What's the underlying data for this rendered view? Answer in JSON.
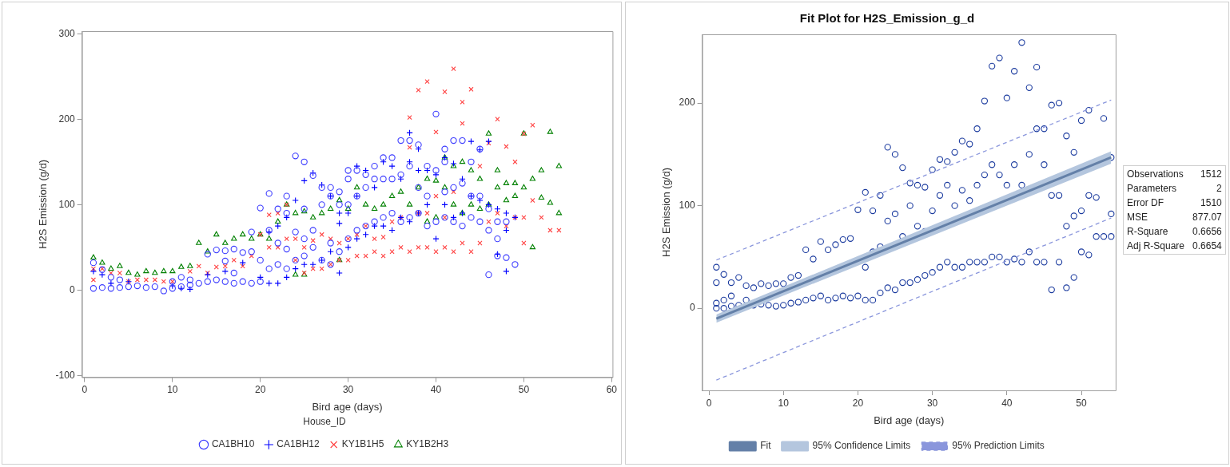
{
  "chart_data": [
    {
      "type": "scatter",
      "xlabel": "Bird age (days)",
      "ylabel": "H2S Emission (g/d)",
      "legend_title": "House_ID",
      "legend": "bottom",
      "grid": false,
      "xlim": [
        -0.3,
        60.1
      ],
      "xticks": [
        0,
        10,
        20,
        30,
        40,
        50,
        60
      ],
      "ylim": [
        -102,
        303
      ],
      "yticks": [
        -100,
        0,
        100,
        200,
        300
      ],
      "series": [
        {
          "name": "CA1BH10",
          "color": "#3b3bff",
          "marker": "circle",
          "x": [
            1,
            1,
            2,
            2,
            3,
            3,
            4,
            4,
            5,
            6,
            7,
            8,
            9,
            10,
            10,
            11,
            11,
            12,
            12,
            13,
            14,
            14,
            15,
            15,
            16,
            16,
            16,
            17,
            17,
            17,
            18,
            18,
            19,
            19,
            19,
            20,
            20,
            20,
            21,
            21,
            21,
            22,
            22,
            22,
            23,
            23,
            23,
            23,
            24,
            24,
            24,
            25,
            25,
            25,
            25,
            26,
            26,
            26,
            27,
            27,
            27,
            28,
            28,
            28,
            28,
            29,
            29,
            29,
            30,
            30,
            30,
            30,
            31,
            31,
            31,
            32,
            32,
            32,
            33,
            33,
            33,
            34,
            34,
            34,
            35,
            35,
            35,
            36,
            36,
            36,
            37,
            37,
            37,
            38,
            38,
            38,
            39,
            39,
            39,
            40,
            40,
            40,
            41,
            41,
            41,
            41,
            42,
            42,
            42,
            43,
            43,
            43,
            44,
            44,
            44,
            45,
            45,
            45,
            46,
            46,
            46,
            47,
            47,
            47,
            48,
            48,
            49
          ],
          "values": [
            2,
            32,
            3,
            24,
            2,
            15,
            3,
            12,
            4,
            5,
            3,
            4,
            -1,
            2,
            10,
            4,
            15,
            6,
            12,
            8,
            10,
            42,
            12,
            47,
            10,
            34,
            46,
            8,
            20,
            48,
            10,
            44,
            8,
            45,
            68,
            10,
            35,
            96,
            25,
            70,
            113,
            30,
            55,
            95,
            25,
            48,
            90,
            110,
            35,
            68,
            157,
            40,
            60,
            95,
            150,
            50,
            70,
            134,
            35,
            100,
            120,
            30,
            55,
            110,
            120,
            45,
            100,
            115,
            60,
            100,
            130,
            140,
            70,
            110,
            140,
            75,
            120,
            135,
            80,
            130,
            145,
            85,
            130,
            155,
            90,
            130,
            155,
            80,
            135,
            175,
            85,
            145,
            175,
            90,
            120,
            170,
            75,
            110,
            145,
            80,
            140,
            206,
            85,
            115,
            150,
            165,
            80,
            120,
            175,
            75,
            125,
            175,
            85,
            110,
            150,
            80,
            110,
            165,
            18,
            70,
            95,
            40,
            60,
            80,
            38,
            80,
            30
          ]
        },
        {
          "name": "CA1BH12",
          "color": "#0000ff",
          "marker": "cross",
          "x": [
            1,
            2,
            3,
            5,
            10,
            11,
            12,
            14,
            16,
            18,
            20,
            21,
            21,
            22,
            22,
            23,
            23,
            24,
            24,
            25,
            25,
            26,
            26,
            27,
            27,
            28,
            28,
            29,
            29,
            29,
            30,
            30,
            31,
            31,
            31,
            32,
            32,
            33,
            33,
            34,
            34,
            35,
            35,
            36,
            36,
            37,
            37,
            37,
            38,
            38,
            38,
            39,
            39,
            40,
            40,
            41,
            41,
            42,
            42,
            43,
            43,
            44,
            44,
            45,
            45,
            46,
            46,
            47,
            47,
            48,
            48,
            48,
            49
          ],
          "values": [
            22,
            18,
            8,
            10,
            5,
            2,
            1,
            18,
            22,
            32,
            15,
            8,
            68,
            8,
            75,
            15,
            85,
            25,
            105,
            30,
            128,
            30,
            137,
            35,
            123,
            45,
            110,
            20,
            78,
            90,
            50,
            90,
            60,
            110,
            145,
            65,
            140,
            75,
            120,
            75,
            150,
            70,
            145,
            85,
            130,
            80,
            150,
            184,
            90,
            140,
            165,
            100,
            140,
            60,
            135,
            100,
            155,
            85,
            148,
            90,
            130,
            110,
            174,
            105,
            164,
            100,
            174,
            42,
            95,
            22,
            70,
            90,
            85
          ]
        },
        {
          "name": "KY1B1H5",
          "color": "#ff4040",
          "marker": "x",
          "x": [
            1,
            1,
            2,
            3,
            4,
            5,
            6,
            7,
            8,
            9,
            10,
            12,
            13,
            14,
            15,
            16,
            17,
            18,
            19,
            20,
            21,
            21,
            22,
            22,
            23,
            23,
            24,
            24,
            25,
            25,
            26,
            26,
            27,
            27,
            28,
            28,
            29,
            29,
            30,
            30,
            31,
            31,
            32,
            32,
            33,
            33,
            34,
            34,
            35,
            35,
            36,
            36,
            37,
            37,
            37,
            38,
            38,
            38,
            39,
            39,
            39,
            40,
            40,
            40,
            41,
            41,
            41,
            42,
            42,
            42,
            43,
            43,
            43,
            44,
            44,
            45,
            45,
            46,
            46,
            47,
            47,
            48,
            48,
            49,
            49,
            50,
            50,
            50,
            51,
            51,
            52,
            53,
            54
          ],
          "values": [
            12,
            25,
            25,
            20,
            20,
            10,
            12,
            12,
            12,
            10,
            10,
            22,
            28,
            20,
            27,
            28,
            35,
            28,
            40,
            65,
            50,
            88,
            50,
            90,
            60,
            100,
            35,
            60,
            20,
            50,
            25,
            58,
            25,
            65,
            30,
            60,
            35,
            55,
            35,
            60,
            40,
            65,
            40,
            75,
            45,
            60,
            40,
            62,
            45,
            80,
            50,
            85,
            45,
            167,
            202,
            50,
            90,
            234,
            50,
            90,
            244,
            45,
            110,
            185,
            50,
            85,
            232,
            45,
            115,
            259,
            55,
            195,
            220,
            45,
            235,
            55,
            145,
            80,
            172,
            90,
            200,
            75,
            168,
            85,
            150,
            55,
            85,
            183,
            105,
            193,
            85,
            70,
            70
          ]
        },
        {
          "name": "KY1B2H3",
          "color": "#008000",
          "marker": "triangle",
          "x": [
            1,
            2,
            3,
            4,
            5,
            6,
            7,
            8,
            9,
            10,
            11,
            12,
            13,
            14,
            15,
            16,
            17,
            18,
            19,
            20,
            21,
            22,
            23,
            24,
            24,
            25,
            25,
            26,
            27,
            28,
            29,
            29,
            30,
            31,
            32,
            33,
            34,
            35,
            36,
            37,
            38,
            39,
            39,
            40,
            40,
            41,
            41,
            42,
            42,
            43,
            43,
            44,
            44,
            45,
            45,
            46,
            46,
            47,
            47,
            48,
            48,
            49,
            49,
            50,
            50,
            51,
            51,
            52,
            52,
            53,
            53,
            54,
            54
          ],
          "values": [
            38,
            32,
            25,
            28,
            20,
            18,
            22,
            20,
            22,
            22,
            27,
            28,
            55,
            45,
            65,
            55,
            60,
            65,
            60,
            65,
            60,
            80,
            100,
            18,
            90,
            18,
            92,
            85,
            90,
            95,
            35,
            105,
            95,
            120,
            100,
            95,
            100,
            110,
            115,
            100,
            120,
            80,
            130,
            85,
            128,
            120,
            155,
            100,
            145,
            90,
            150,
            100,
            140,
            95,
            130,
            100,
            183,
            120,
            140,
            105,
            125,
            110,
            125,
            120,
            183,
            50,
            130,
            108,
            140,
            102,
            185,
            90,
            145
          ]
        }
      ]
    },
    {
      "type": "scatter",
      "title": "Fit Plot for H2S_Emission_g_d",
      "xlabel": "Bird age (days)",
      "ylabel": "H2S Emission (g/d)",
      "legend": "bottom",
      "grid": false,
      "xlim": [
        -0.9,
        54.6
      ],
      "xticks": [
        0,
        10,
        20,
        30,
        40,
        50
      ],
      "ylim": [
        -80,
        267
      ],
      "yticks": [
        0,
        100,
        200
      ],
      "annotations": [
        "Observations",
        "1512",
        "Parameters",
        "2",
        "Error DF",
        "1510",
        "MSE",
        "877.07",
        "R-Square",
        "0.6656",
        "Adj R-Square",
        "0.6654"
      ],
      "series": [
        {
          "color": "#1a3a9e",
          "marker": "circle",
          "x": [
            1,
            1,
            1,
            1,
            2,
            2,
            2,
            3,
            3,
            3,
            4,
            4,
            5,
            5,
            6,
            6,
            7,
            7,
            8,
            8,
            9,
            9,
            10,
            10,
            11,
            11,
            12,
            12,
            13,
            13,
            14,
            14,
            15,
            15,
            16,
            16,
            17,
            17,
            18,
            18,
            19,
            19,
            20,
            20,
            21,
            21,
            21,
            22,
            22,
            22,
            23,
            23,
            23,
            24,
            24,
            24,
            25,
            25,
            25,
            26,
            26,
            26,
            27,
            27,
            27,
            28,
            28,
            28,
            29,
            29,
            29,
            30,
            30,
            30,
            31,
            31,
            31,
            32,
            32,
            32,
            33,
            33,
            33,
            34,
            34,
            34,
            35,
            35,
            35,
            36,
            36,
            36,
            37,
            37,
            37,
            38,
            38,
            38,
            39,
            39,
            39,
            40,
            40,
            40,
            41,
            41,
            41,
            42,
            42,
            42,
            43,
            43,
            43,
            44,
            44,
            44,
            45,
            45,
            45,
            46,
            46,
            46,
            47,
            47,
            47,
            48,
            48,
            48,
            49,
            49,
            49,
            50,
            50,
            50,
            51,
            51,
            51,
            52,
            52,
            53,
            53,
            54,
            54,
            54
          ],
          "values": [
            0,
            5,
            25,
            40,
            0,
            8,
            33,
            2,
            12,
            25,
            3,
            30,
            8,
            22,
            3,
            20,
            4,
            24,
            3,
            22,
            2,
            24,
            3,
            24,
            5,
            30,
            6,
            32,
            8,
            57,
            10,
            48,
            12,
            65,
            8,
            57,
            10,
            62,
            12,
            67,
            10,
            68,
            12,
            96,
            8,
            40,
            113,
            8,
            55,
            95,
            15,
            60,
            110,
            20,
            85,
            157,
            18,
            92,
            150,
            25,
            70,
            137,
            25,
            100,
            122,
            28,
            80,
            120,
            32,
            75,
            118,
            35,
            95,
            135,
            40,
            110,
            145,
            45,
            120,
            143,
            40,
            100,
            152,
            40,
            115,
            163,
            45,
            105,
            160,
            45,
            120,
            175,
            45,
            130,
            202,
            50,
            140,
            236,
            50,
            130,
            244,
            45,
            120,
            205,
            48,
            140,
            231,
            45,
            120,
            259,
            55,
            150,
            215,
            45,
            175,
            235,
            45,
            140,
            175,
            18,
            110,
            198,
            45,
            110,
            200,
            20,
            80,
            168,
            30,
            90,
            152,
            55,
            95,
            183,
            52,
            110,
            193,
            70,
            108,
            70,
            185,
            70,
            92,
            147
          ]
        },
        {
          "name": "Fit",
          "type": "line",
          "color": "#6480a8",
          "marker": "none",
          "line_style": "solid",
          "x": [
            1,
            54
          ],
          "values": [
            -10,
            147
          ]
        },
        {
          "name": "95% Confidence Limits",
          "type": "line",
          "color": "#b4c6de",
          "marker": "none",
          "line_style": "solid",
          "x": [
            1,
            54
          ],
          "values": [
            null,
            null
          ],
          "lower": [
            -14,
            141
          ],
          "upper": [
            -6,
            153
          ]
        },
        {
          "name": "95% Prediction Limits",
          "type": "line",
          "color": "#8a96dc",
          "marker": "none",
          "line_style": "dashed",
          "x": [
            1,
            54
          ],
          "values": [
            47,
            203
          ]
        },
        {
          "type": "line",
          "color": "#8a96dc",
          "marker": "none",
          "line_style": "dashed",
          "x": [
            1,
            54
          ],
          "values": [
            -70,
            88
          ]
        }
      ]
    }
  ]
}
